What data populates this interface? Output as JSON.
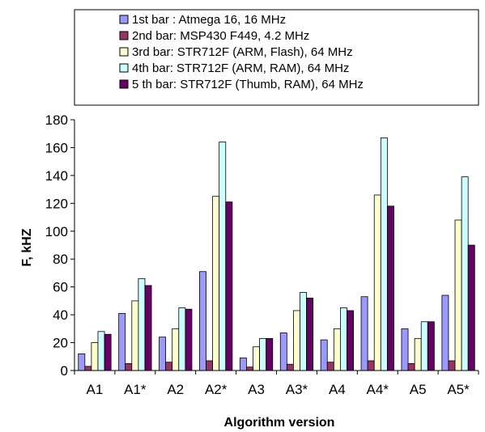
{
  "chart_data": {
    "type": "bar",
    "categories": [
      "A1",
      "A1*",
      "A2",
      "A2*",
      "A3",
      "A3*",
      "A4",
      "A4*",
      "A5",
      "A5*"
    ],
    "series": [
      {
        "name": "1st bar : Atmega 16, 16 MHz",
        "color": "#9999ff",
        "values": [
          12,
          41,
          24,
          71,
          9,
          27,
          22,
          53,
          30,
          54
        ]
      },
      {
        "name": "2nd bar: MSP430 F449, 4.2 MHz",
        "color": "#993366",
        "values": [
          3,
          5,
          6,
          7,
          2.5,
          4.5,
          6,
          7,
          5,
          7
        ]
      },
      {
        "name": "3rd bar: STR712F (ARM, Flash), 64 MHz",
        "color": "#ffffcc",
        "values": [
          20,
          50,
          30,
          125,
          17,
          43,
          30,
          126,
          23,
          108
        ]
      },
      {
        "name": "4th bar: STR712F (ARM, RAM), 64 MHz",
        "color": "#ccffff",
        "values": [
          28,
          66,
          45,
          164,
          23,
          56,
          45,
          167,
          35,
          139
        ]
      },
      {
        "name": "5 th bar: STR712F (Thumb, RAM), 64 MHz",
        "color": "#660066",
        "values": [
          26,
          61,
          44,
          121,
          23,
          52,
          43,
          118,
          35,
          90
        ]
      }
    ],
    "xlabel": "Algorithm version",
    "ylabel": "F, kHZ",
    "ylim": [
      0,
      180
    ],
    "yticks": [
      "0",
      "20",
      "40",
      "60",
      "80",
      "100",
      "120",
      "140",
      "160",
      "180"
    ],
    "grid": false,
    "legend_position": "top"
  }
}
